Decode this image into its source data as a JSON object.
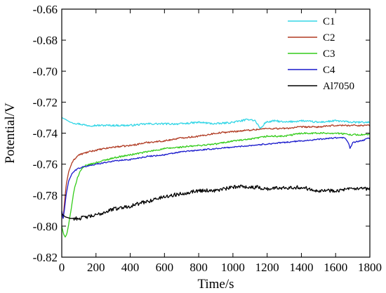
{
  "chart_data": {
    "type": "line",
    "title": "",
    "xlabel": "Time/s",
    "ylabel": "Potential/V",
    "xlim": [
      0,
      1800
    ],
    "ylim": [
      -0.82,
      -0.66
    ],
    "x_ticks": [
      0,
      200,
      400,
      600,
      800,
      1000,
      1200,
      1400,
      1600,
      1800
    ],
    "x_tick_labels": [
      "0",
      "200",
      "400",
      "600",
      "800",
      "1000",
      "1200",
      "1400",
      "1600",
      "1800"
    ],
    "y_ticks": [
      -0.82,
      -0.8,
      -0.78,
      -0.76,
      -0.74,
      -0.72,
      -0.7,
      -0.68,
      -0.66
    ],
    "y_tick_labels": [
      "-0.82",
      "-0.80",
      "-0.78",
      "-0.76",
      "-0.74",
      "-0.72",
      "-0.70",
      "-0.68",
      "-0.66"
    ],
    "grid": false,
    "legend_position": "top-right",
    "series": [
      {
        "name": "C1",
        "color": "#33d6e6",
        "noise": 0.0006,
        "x": [
          0,
          20,
          50,
          100,
          150,
          200,
          300,
          400,
          500,
          600,
          700,
          800,
          900,
          1000,
          1050,
          1100,
          1130,
          1160,
          1170,
          1190,
          1250,
          1300,
          1400,
          1500,
          1600,
          1700,
          1800
        ],
        "y": [
          -0.73,
          -0.731,
          -0.733,
          -0.734,
          -0.735,
          -0.735,
          -0.735,
          -0.735,
          -0.734,
          -0.734,
          -0.734,
          -0.733,
          -0.734,
          -0.733,
          -0.732,
          -0.731,
          -0.732,
          -0.737,
          -0.736,
          -0.733,
          -0.732,
          -0.733,
          -0.732,
          -0.733,
          -0.732,
          -0.733,
          -0.733
        ]
      },
      {
        "name": "C2",
        "color": "#b03a22",
        "noise": 0.0005,
        "x": [
          0,
          8,
          15,
          25,
          40,
          60,
          80,
          100,
          130,
          160,
          200,
          300,
          400,
          500,
          600,
          700,
          800,
          900,
          1000,
          1100,
          1200,
          1300,
          1400,
          1500,
          1600,
          1700,
          1800
        ],
        "y": [
          -0.791,
          -0.795,
          -0.786,
          -0.774,
          -0.765,
          -0.759,
          -0.756,
          -0.754,
          -0.753,
          -0.752,
          -0.751,
          -0.749,
          -0.748,
          -0.746,
          -0.745,
          -0.743,
          -0.742,
          -0.74,
          -0.739,
          -0.738,
          -0.737,
          -0.737,
          -0.736,
          -0.736,
          -0.735,
          -0.735,
          -0.735
        ]
      },
      {
        "name": "C3",
        "color": "#33cc1a",
        "noise": 0.0005,
        "x": [
          0,
          10,
          20,
          30,
          40,
          55,
          70,
          90,
          110,
          140,
          170,
          200,
          300,
          400,
          500,
          600,
          700,
          800,
          900,
          1000,
          1100,
          1200,
          1300,
          1400,
          1500,
          1600,
          1700,
          1800
        ],
        "y": [
          -0.8,
          -0.805,
          -0.807,
          -0.805,
          -0.799,
          -0.789,
          -0.778,
          -0.769,
          -0.764,
          -0.761,
          -0.76,
          -0.759,
          -0.756,
          -0.754,
          -0.752,
          -0.75,
          -0.749,
          -0.748,
          -0.747,
          -0.745,
          -0.744,
          -0.742,
          -0.742,
          -0.74,
          -0.74,
          -0.74,
          -0.741,
          -0.741
        ]
      },
      {
        "name": "C4",
        "color": "#1a1acc",
        "noise": 0.0004,
        "x": [
          0,
          8,
          15,
          25,
          40,
          60,
          90,
          120,
          160,
          200,
          300,
          400,
          500,
          600,
          700,
          800,
          900,
          1000,
          1100,
          1200,
          1300,
          1400,
          1500,
          1600,
          1650,
          1670,
          1685,
          1700,
          1750,
          1800
        ],
        "y": [
          -0.79,
          -0.795,
          -0.79,
          -0.78,
          -0.771,
          -0.766,
          -0.763,
          -0.762,
          -0.761,
          -0.76,
          -0.758,
          -0.757,
          -0.755,
          -0.754,
          -0.752,
          -0.751,
          -0.75,
          -0.749,
          -0.748,
          -0.747,
          -0.746,
          -0.745,
          -0.744,
          -0.743,
          -0.743,
          -0.745,
          -0.75,
          -0.746,
          -0.745,
          -0.743
        ]
      },
      {
        "name": "Al7050",
        "color": "#000000",
        "noise": 0.0012,
        "x": [
          0,
          20,
          50,
          100,
          150,
          200,
          250,
          300,
          400,
          500,
          600,
          700,
          800,
          900,
          1000,
          1050,
          1100,
          1150,
          1200,
          1300,
          1400,
          1500,
          1600,
          1700,
          1800
        ],
        "y": [
          -0.792,
          -0.794,
          -0.795,
          -0.795,
          -0.794,
          -0.793,
          -0.791,
          -0.789,
          -0.787,
          -0.784,
          -0.781,
          -0.779,
          -0.777,
          -0.777,
          -0.775,
          -0.774,
          -0.775,
          -0.775,
          -0.776,
          -0.775,
          -0.775,
          -0.777,
          -0.777,
          -0.776,
          -0.776
        ]
      }
    ]
  }
}
